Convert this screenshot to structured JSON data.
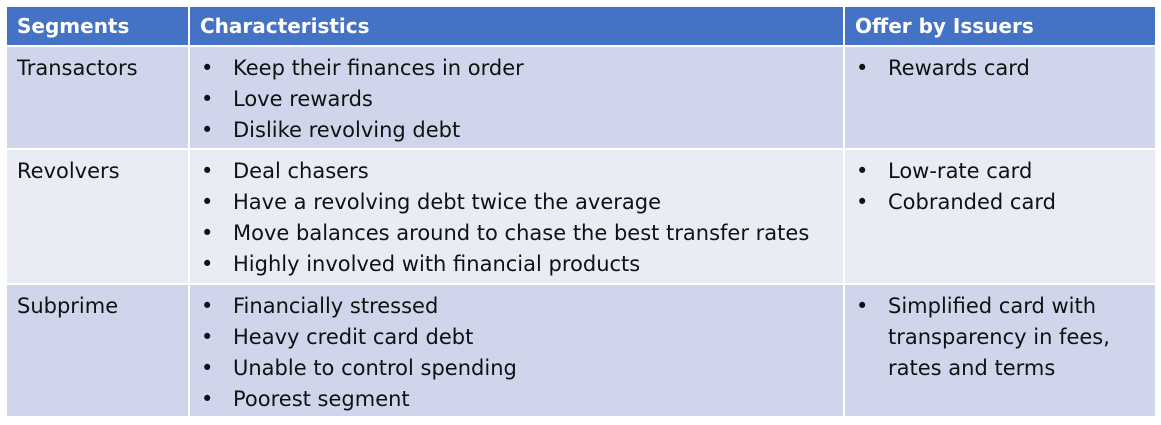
{
  "headers": [
    "Segments",
    "Characteristics",
    "Offer by Issuers"
  ],
  "bullet_glyph": "•",
  "rows": [
    {
      "segment": "Transactors",
      "characteristics": [
        "Keep their finances in order",
        "Love rewards",
        "Dislike revolving debt"
      ],
      "offers": [
        "Rewards card"
      ]
    },
    {
      "segment": "Revolvers",
      "characteristics": [
        "Deal chasers",
        "Have a revolving debt twice the average",
        "Move balances around to chase the best transfer rates",
        "Highly involved with financial products"
      ],
      "offers": [
        "Low-rate card",
        "Cobranded card"
      ]
    },
    {
      "segment": "Subprime",
      "characteristics": [
        "Financially stressed",
        "Heavy credit card debt",
        "Unable to control spending",
        "Poorest segment"
      ],
      "offers": [
        "Simplified card with transparency in fees, rates and terms"
      ]
    }
  ],
  "colors": {
    "header_bg": "#4472c4",
    "row_odd_bg": "#cfd5ea",
    "row_even_bg": "#e9ebf5"
  }
}
